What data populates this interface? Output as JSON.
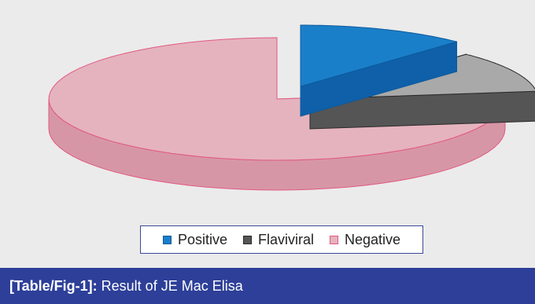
{
  "chart_data": {
    "type": "pie",
    "style": "3d-exploded",
    "title": "",
    "categories": [
      "Positive",
      "Flaviviral",
      "Negative"
    ],
    "values": [
      12,
      11,
      77
    ],
    "unit": "%",
    "legend_position": "bottom-center"
  },
  "colors": {
    "positive_top": "#1a7fc9",
    "positive_side": "#0f60a8",
    "flaviviral_top": "#a9a9a9",
    "flaviviral_side": "#555555",
    "negative_top": "#e5b3be",
    "negative_side": "#d796a6",
    "negative_edge": "#e05a82",
    "panel_bg": "#ebebeb",
    "caption_bg": "#2d3f98"
  },
  "caption": {
    "label": "[Table/Fig-1]:",
    "text": " Result of JE Mac Elisa"
  }
}
